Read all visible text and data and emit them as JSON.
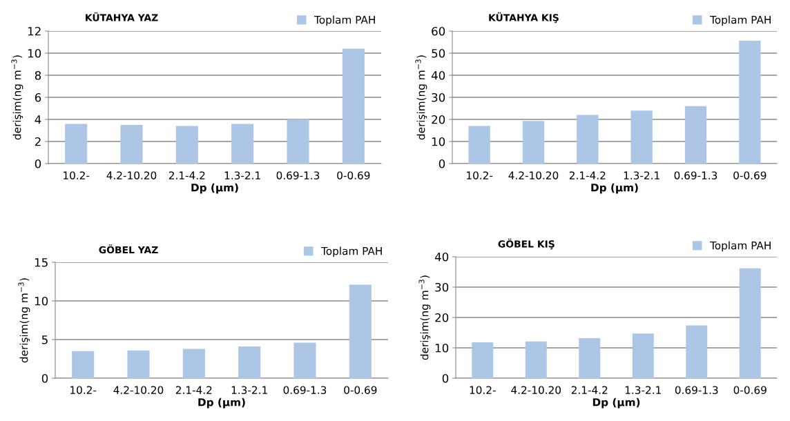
{
  "chart_data": [
    {
      "type": "bar",
      "title": "KÜTAHYA YAZ",
      "xlabel": "Dp (µm)",
      "ylabel": "derişim(ng m$^{−3}$)",
      "categories": [
        "10.2-",
        "4.2-10.20",
        "2.1-4.2",
        "1.3-2.1",
        "0.69-1.3",
        "0-0.69"
      ],
      "series": [
        {
          "name": "Toplam PAH",
          "color": "#aec6e6",
          "values": [
            3.6,
            3.5,
            3.4,
            3.6,
            4.0,
            10.4
          ]
        }
      ],
      "ylim": [
        0,
        12
      ],
      "yticks": [
        0,
        2,
        4,
        6,
        8,
        10,
        12
      ],
      "grid": "y",
      "legend": "top right"
    },
    {
      "type": "bar",
      "title": "KÜTAHYA KIŞ",
      "xlabel": "Dp (µm)",
      "ylabel": "derişim(ng m$^{−3}$)",
      "categories": [
        "10.2-",
        "4.2-10.20",
        "2.1-4.2",
        "1.3-2.1",
        "0.69-1.3",
        "0-0.69"
      ],
      "series": [
        {
          "name": "Toplam PAH",
          "color": "#aec6e6",
          "values": [
            17,
            19.3,
            22,
            24,
            26,
            55.6
          ]
        }
      ],
      "ylim": [
        0,
        60
      ],
      "yticks": [
        0,
        10,
        20,
        30,
        40,
        50,
        60
      ],
      "grid": "y",
      "legend": "top right"
    },
    {
      "type": "bar",
      "title": "GÖBEL YAZ",
      "xlabel": "Dp (µm)",
      "ylabel": "derişim(ng m$^{−3}$)",
      "categories": [
        "10.2-",
        "4.2-10.20",
        "2.1-4.2",
        "1.3-2.1",
        "0.69-1.3",
        "0-0.69"
      ],
      "series": [
        {
          "name": "Toplam PAH",
          "color": "#aec6e6",
          "values": [
            3.5,
            3.6,
            3.8,
            4.1,
            4.6,
            12.1
          ]
        }
      ],
      "ylim": [
        0,
        15
      ],
      "yticks": [
        0,
        5,
        10,
        15
      ],
      "grid": "y",
      "legend": "top right"
    },
    {
      "type": "bar",
      "title": "GÖBEL KIŞ",
      "xlabel": "Dp (µm)",
      "ylabel": "derişim(ng m$^{−3}$)",
      "categories": [
        "10.2-",
        "4.2-10.20",
        "2.1-4.2",
        "1.3-2.1",
        "0.69-1.3",
        "0-0.69"
      ],
      "series": [
        {
          "name": "Toplam PAH",
          "color": "#aec6e6",
          "values": [
            11.8,
            12.1,
            13.2,
            14.7,
            17.4,
            36.2
          ]
        }
      ],
      "ylim": [
        0,
        40
      ],
      "yticks": [
        0,
        10,
        20,
        30,
        40
      ],
      "grid": "y",
      "legend": "top right"
    }
  ]
}
